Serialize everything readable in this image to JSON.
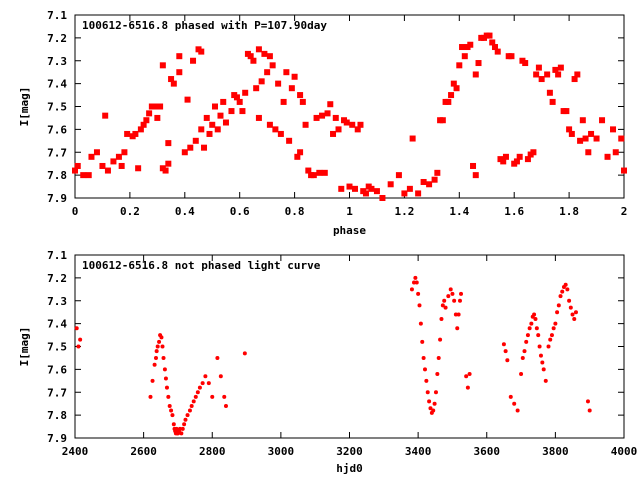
{
  "chart_data": [
    {
      "type": "scatter",
      "title": "100612-6516.8 phased with P=107.90day",
      "xlabel": "phase",
      "ylabel": "I[mag]",
      "xlim": [
        0,
        2
      ],
      "ylim": [
        7.9,
        7.1
      ],
      "y_inverted": true,
      "grid": false,
      "marker_color": "#ff0000",
      "x_ticks": [
        "0",
        "0.2",
        "0.4",
        "0.6",
        "0.8",
        "1",
        "1.2",
        "1.4",
        "1.6",
        "1.8",
        "2"
      ],
      "y_ticks": [
        "7.1",
        "7.2",
        "7.3",
        "7.4",
        "7.5",
        "7.6",
        "7.7",
        "7.8",
        "7.9"
      ],
      "points": [
        [
          0.0,
          7.78
        ],
        [
          0.01,
          7.76
        ],
        [
          0.03,
          7.8
        ],
        [
          0.05,
          7.8
        ],
        [
          0.06,
          7.72
        ],
        [
          0.08,
          7.7
        ],
        [
          0.1,
          7.76
        ],
        [
          0.11,
          7.54
        ],
        [
          0.12,
          7.78
        ],
        [
          0.14,
          7.74
        ],
        [
          0.16,
          7.72
        ],
        [
          0.17,
          7.76
        ],
        [
          0.18,
          7.7
        ],
        [
          0.19,
          7.62
        ],
        [
          0.21,
          7.63
        ],
        [
          0.22,
          7.62
        ],
        [
          0.23,
          7.77
        ],
        [
          0.24,
          7.6
        ],
        [
          0.25,
          7.58
        ],
        [
          0.26,
          7.56
        ],
        [
          0.27,
          7.53
        ],
        [
          0.28,
          7.5
        ],
        [
          0.29,
          7.5
        ],
        [
          0.3,
          7.55
        ],
        [
          0.31,
          7.5
        ],
        [
          0.32,
          7.77
        ],
        [
          0.33,
          7.78
        ],
        [
          0.32,
          7.32
        ],
        [
          0.34,
          7.66
        ],
        [
          0.34,
          7.75
        ],
        [
          0.35,
          7.38
        ],
        [
          0.36,
          7.4
        ],
        [
          0.38,
          7.35
        ],
        [
          0.38,
          7.28
        ],
        [
          0.4,
          7.7
        ],
        [
          0.41,
          7.47
        ],
        [
          0.42,
          7.68
        ],
        [
          0.43,
          7.3
        ],
        [
          0.44,
          7.65
        ],
        [
          0.45,
          7.25
        ],
        [
          0.46,
          7.26
        ],
        [
          0.46,
          7.6
        ],
        [
          0.47,
          7.68
        ],
        [
          0.48,
          7.55
        ],
        [
          0.49,
          7.62
        ],
        [
          0.5,
          7.58
        ],
        [
          0.51,
          7.5
        ],
        [
          0.52,
          7.6
        ],
        [
          0.53,
          7.54
        ],
        [
          0.54,
          7.48
        ],
        [
          0.55,
          7.57
        ],
        [
          0.57,
          7.52
        ],
        [
          0.58,
          7.45
        ],
        [
          0.59,
          7.46
        ],
        [
          0.6,
          7.48
        ],
        [
          0.61,
          7.52
        ],
        [
          0.62,
          7.44
        ],
        [
          0.63,
          7.27
        ],
        [
          0.64,
          7.28
        ],
        [
          0.65,
          7.3
        ],
        [
          0.66,
          7.42
        ],
        [
          0.67,
          7.55
        ],
        [
          0.67,
          7.25
        ],
        [
          0.68,
          7.39
        ],
        [
          0.69,
          7.27
        ],
        [
          0.7,
          7.35
        ],
        [
          0.71,
          7.28
        ],
        [
          0.71,
          7.58
        ],
        [
          0.72,
          7.32
        ],
        [
          0.73,
          7.6
        ],
        [
          0.74,
          7.4
        ],
        [
          0.75,
          7.62
        ],
        [
          0.76,
          7.48
        ],
        [
          0.77,
          7.35
        ],
        [
          0.78,
          7.65
        ],
        [
          0.79,
          7.42
        ],
        [
          0.8,
          7.37
        ],
        [
          0.81,
          7.72
        ],
        [
          0.82,
          7.45
        ],
        [
          0.82,
          7.7
        ],
        [
          0.83,
          7.48
        ],
        [
          0.84,
          7.58
        ],
        [
          0.85,
          7.78
        ],
        [
          0.86,
          7.8
        ],
        [
          0.87,
          7.8
        ],
        [
          0.88,
          7.55
        ],
        [
          0.89,
          7.79
        ],
        [
          0.9,
          7.54
        ],
        [
          0.91,
          7.79
        ],
        [
          0.92,
          7.53
        ],
        [
          0.93,
          7.49
        ],
        [
          0.94,
          7.62
        ],
        [
          0.95,
          7.55
        ],
        [
          0.96,
          7.6
        ],
        [
          0.97,
          7.86
        ],
        [
          0.98,
          7.56
        ],
        [
          0.99,
          7.57
        ],
        [
          1.0,
          7.85
        ],
        [
          1.01,
          7.58
        ],
        [
          1.02,
          7.86
        ],
        [
          1.03,
          7.6
        ],
        [
          1.04,
          7.58
        ],
        [
          1.05,
          7.87
        ],
        [
          1.06,
          7.88
        ],
        [
          1.07,
          7.85
        ],
        [
          1.08,
          7.86
        ],
        [
          1.1,
          7.87
        ],
        [
          1.12,
          7.9
        ],
        [
          1.15,
          7.84
        ],
        [
          1.18,
          7.8
        ],
        [
          1.2,
          7.88
        ],
        [
          1.22,
          7.86
        ],
        [
          1.23,
          7.64
        ],
        [
          1.25,
          7.88
        ],
        [
          1.27,
          7.83
        ],
        [
          1.29,
          7.84
        ],
        [
          1.31,
          7.82
        ],
        [
          1.32,
          7.79
        ],
        [
          1.33,
          7.56
        ],
        [
          1.34,
          7.56
        ],
        [
          1.35,
          7.48
        ],
        [
          1.36,
          7.48
        ],
        [
          1.37,
          7.45
        ],
        [
          1.38,
          7.4
        ],
        [
          1.39,
          7.42
        ],
        [
          1.4,
          7.32
        ],
        [
          1.41,
          7.24
        ],
        [
          1.42,
          7.28
        ],
        [
          1.43,
          7.24
        ],
        [
          1.44,
          7.23
        ],
        [
          1.45,
          7.76
        ],
        [
          1.46,
          7.8
        ],
        [
          1.46,
          7.36
        ],
        [
          1.47,
          7.31
        ],
        [
          1.48,
          7.2
        ],
        [
          1.49,
          7.2
        ],
        [
          1.5,
          7.19
        ],
        [
          1.51,
          7.19
        ],
        [
          1.52,
          7.22
        ],
        [
          1.53,
          7.24
        ],
        [
          1.54,
          7.26
        ],
        [
          1.55,
          7.73
        ],
        [
          1.56,
          7.74
        ],
        [
          1.57,
          7.72
        ],
        [
          1.58,
          7.28
        ],
        [
          1.59,
          7.28
        ],
        [
          1.6,
          7.75
        ],
        [
          1.61,
          7.74
        ],
        [
          1.62,
          7.72
        ],
        [
          1.63,
          7.3
        ],
        [
          1.64,
          7.31
        ],
        [
          1.65,
          7.73
        ],
        [
          1.66,
          7.71
        ],
        [
          1.67,
          7.7
        ],
        [
          1.68,
          7.36
        ],
        [
          1.69,
          7.33
        ],
        [
          1.7,
          7.38
        ],
        [
          1.72,
          7.36
        ],
        [
          1.73,
          7.44
        ],
        [
          1.74,
          7.48
        ],
        [
          1.75,
          7.34
        ],
        [
          1.76,
          7.36
        ],
        [
          1.77,
          7.33
        ],
        [
          1.78,
          7.52
        ],
        [
          1.79,
          7.52
        ],
        [
          1.8,
          7.6
        ],
        [
          1.81,
          7.62
        ],
        [
          1.82,
          7.38
        ],
        [
          1.83,
          7.36
        ],
        [
          1.84,
          7.65
        ],
        [
          1.85,
          7.56
        ],
        [
          1.86,
          7.64
        ],
        [
          1.87,
          7.7
        ],
        [
          1.88,
          7.62
        ],
        [
          1.9,
          7.64
        ],
        [
          1.92,
          7.56
        ],
        [
          1.94,
          7.72
        ],
        [
          1.96,
          7.6
        ],
        [
          1.97,
          7.7
        ],
        [
          1.99,
          7.64
        ],
        [
          2.0,
          7.78
        ]
      ]
    },
    {
      "type": "scatter",
      "title": "100612-6516.8 not phased light curve",
      "xlabel": "hjd0",
      "ylabel": "I[mag]",
      "xlim": [
        2400,
        4000
      ],
      "ylim": [
        7.9,
        7.1
      ],
      "y_inverted": true,
      "grid": false,
      "marker_color": "#ff0000",
      "x_ticks": [
        "2400",
        "2600",
        "2800",
        "3000",
        "3200",
        "3400",
        "3600",
        "3800",
        "4000"
      ],
      "y_ticks": [
        "7.1",
        "7.2",
        "7.3",
        "7.4",
        "7.5",
        "7.6",
        "7.7",
        "7.8",
        "7.9"
      ],
      "points": [
        [
          2405,
          7.42
        ],
        [
          2410,
          7.5
        ],
        [
          2415,
          7.47
        ],
        [
          2620,
          7.72
        ],
        [
          2626,
          7.65
        ],
        [
          2632,
          7.58
        ],
        [
          2636,
          7.55
        ],
        [
          2638,
          7.52
        ],
        [
          2641,
          7.5
        ],
        [
          2645,
          7.48
        ],
        [
          2648,
          7.45
        ],
        [
          2652,
          7.46
        ],
        [
          2655,
          7.5
        ],
        [
          2658,
          7.55
        ],
        [
          2662,
          7.6
        ],
        [
          2665,
          7.64
        ],
        [
          2668,
          7.68
        ],
        [
          2672,
          7.72
        ],
        [
          2676,
          7.76
        ],
        [
          2680,
          7.78
        ],
        [
          2684,
          7.8
        ],
        [
          2688,
          7.84
        ],
        [
          2690,
          7.86
        ],
        [
          2692,
          7.87
        ],
        [
          2694,
          7.88
        ],
        [
          2696,
          7.86
        ],
        [
          2698,
          7.88
        ],
        [
          2700,
          7.88
        ],
        [
          2703,
          7.87
        ],
        [
          2706,
          7.86
        ],
        [
          2710,
          7.88
        ],
        [
          2714,
          7.86
        ],
        [
          2718,
          7.84
        ],
        [
          2722,
          7.82
        ],
        [
          2728,
          7.8
        ],
        [
          2735,
          7.78
        ],
        [
          2740,
          7.76
        ],
        [
          2746,
          7.74
        ],
        [
          2752,
          7.72
        ],
        [
          2758,
          7.7
        ],
        [
          2764,
          7.68
        ],
        [
          2772,
          7.66
        ],
        [
          2780,
          7.63
        ],
        [
          2790,
          7.66
        ],
        [
          2800,
          7.72
        ],
        [
          2815,
          7.55
        ],
        [
          2825,
          7.63
        ],
        [
          2835,
          7.72
        ],
        [
          2840,
          7.76
        ],
        [
          2895,
          7.53
        ],
        [
          3382,
          7.25
        ],
        [
          3388,
          7.22
        ],
        [
          3392,
          7.2
        ],
        [
          3396,
          7.22
        ],
        [
          3400,
          7.27
        ],
        [
          3404,
          7.32
        ],
        [
          3408,
          7.4
        ],
        [
          3412,
          7.48
        ],
        [
          3416,
          7.55
        ],
        [
          3420,
          7.6
        ],
        [
          3424,
          7.65
        ],
        [
          3428,
          7.7
        ],
        [
          3432,
          7.74
        ],
        [
          3436,
          7.77
        ],
        [
          3440,
          7.79
        ],
        [
          3444,
          7.78
        ],
        [
          3448,
          7.75
        ],
        [
          3452,
          7.7
        ],
        [
          3456,
          7.62
        ],
        [
          3460,
          7.55
        ],
        [
          3464,
          7.47
        ],
        [
          3468,
          7.38
        ],
        [
          3472,
          7.32
        ],
        [
          3476,
          7.3
        ],
        [
          3480,
          7.33
        ],
        [
          3488,
          7.28
        ],
        [
          3495,
          7.25
        ],
        [
          3500,
          7.27
        ],
        [
          3505,
          7.3
        ],
        [
          3510,
          7.36
        ],
        [
          3514,
          7.42
        ],
        [
          3518,
          7.36
        ],
        [
          3522,
          7.3
        ],
        [
          3525,
          7.27
        ],
        [
          3540,
          7.63
        ],
        [
          3545,
          7.68
        ],
        [
          3550,
          7.62
        ],
        [
          3650,
          7.49
        ],
        [
          3655,
          7.52
        ],
        [
          3660,
          7.56
        ],
        [
          3670,
          7.72
        ],
        [
          3680,
          7.75
        ],
        [
          3690,
          7.78
        ],
        [
          3700,
          7.62
        ],
        [
          3705,
          7.55
        ],
        [
          3710,
          7.52
        ],
        [
          3715,
          7.48
        ],
        [
          3720,
          7.45
        ],
        [
          3725,
          7.42
        ],
        [
          3730,
          7.4
        ],
        [
          3734,
          7.37
        ],
        [
          3738,
          7.36
        ],
        [
          3742,
          7.38
        ],
        [
          3746,
          7.42
        ],
        [
          3750,
          7.45
        ],
        [
          3754,
          7.5
        ],
        [
          3758,
          7.54
        ],
        [
          3762,
          7.57
        ],
        [
          3766,
          7.6
        ],
        [
          3772,
          7.65
        ],
        [
          3780,
          7.5
        ],
        [
          3785,
          7.47
        ],
        [
          3790,
          7.45
        ],
        [
          3795,
          7.42
        ],
        [
          3800,
          7.4
        ],
        [
          3805,
          7.35
        ],
        [
          3810,
          7.32
        ],
        [
          3815,
          7.28
        ],
        [
          3820,
          7.26
        ],
        [
          3825,
          7.24
        ],
        [
          3830,
          7.23
        ],
        [
          3835,
          7.25
        ],
        [
          3840,
          7.3
        ],
        [
          3845,
          7.33
        ],
        [
          3850,
          7.36
        ],
        [
          3855,
          7.38
        ],
        [
          3860,
          7.35
        ],
        [
          3895,
          7.74
        ],
        [
          3900,
          7.78
        ]
      ]
    }
  ]
}
